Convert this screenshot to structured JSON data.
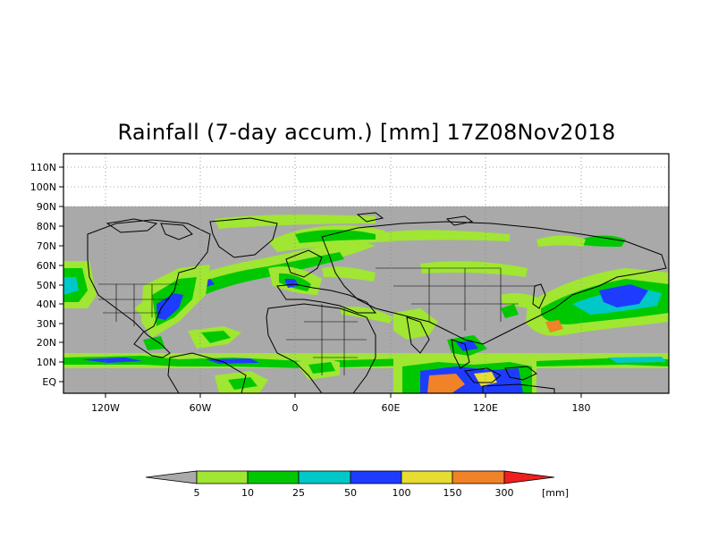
{
  "title": "Rainfall (7-day accum.) [mm] 17Z08Nov2018",
  "map": {
    "lat_labels": [
      "110N",
      "100N",
      "90N",
      "80N",
      "70N",
      "60N",
      "50N",
      "40N",
      "30N",
      "20N",
      "10N",
      "EQ"
    ],
    "lon_labels": [
      "120W",
      "60W",
      "0",
      "60E",
      "120E",
      "180"
    ],
    "lat_range": [
      -5,
      118
    ],
    "lon_range": [
      -147,
      233
    ],
    "no_data_color": "#a9a9a9",
    "background_color": "#ffffff"
  },
  "colorbar": {
    "thresholds": [
      "5",
      "10",
      "25",
      "50",
      "100",
      "150",
      "300"
    ],
    "unit": "[mm]",
    "colors": [
      "#aaaaaa",
      "#a0e632",
      "#00c800",
      "#00c8c8",
      "#1e3cff",
      "#e6dc32",
      "#f08228",
      "#f01e1e"
    ]
  }
}
